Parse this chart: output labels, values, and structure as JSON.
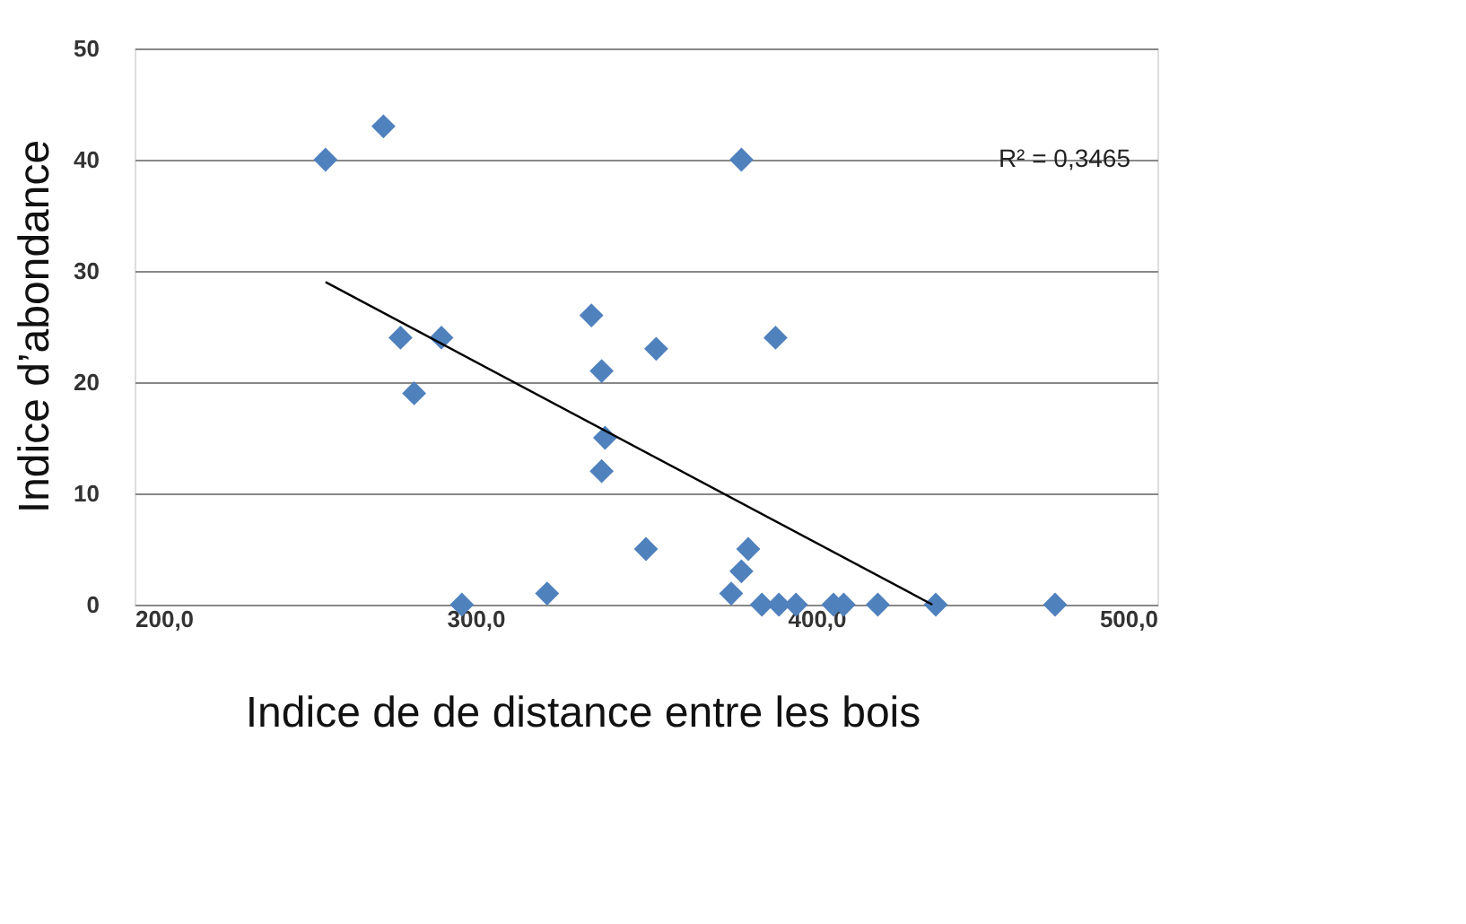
{
  "chart_data": {
    "type": "scatter",
    "xlabel": "Indice de de distance entre les bois",
    "ylabel": "Indice d’abondance",
    "xlim": [
      200,
      500
    ],
    "ylim": [
      0,
      50
    ],
    "xticks": [
      {
        "value": 200,
        "label": "200,0"
      },
      {
        "value": 300,
        "label": "300,0"
      },
      {
        "value": 400,
        "label": "400,0"
      },
      {
        "value": 500,
        "label": "500,0"
      }
    ],
    "yticks": [
      0,
      10,
      20,
      30,
      40,
      50
    ],
    "grid": "y",
    "series": [
      {
        "marker": "diamond",
        "color": "#4f81bd",
        "x": [
          256,
          273,
          378,
          278,
          290,
          282,
          334,
          337,
          338,
          337,
          350,
          353,
          388,
          296,
          321,
          380,
          378,
          375,
          384,
          389,
          394,
          405,
          408,
          418,
          435,
          470
        ],
        "values": [
          40,
          43,
          40,
          24,
          24,
          19,
          26,
          21,
          15,
          12,
          5,
          23,
          24,
          0,
          1,
          5,
          3,
          1,
          0,
          0,
          0,
          0,
          0,
          0,
          0,
          0
        ]
      },
      {
        "type": "line",
        "color": "#000000",
        "x": [
          256,
          434
        ],
        "values": [
          29,
          0
        ]
      }
    ],
    "annotations": [
      "R² = 0,3465"
    ]
  }
}
